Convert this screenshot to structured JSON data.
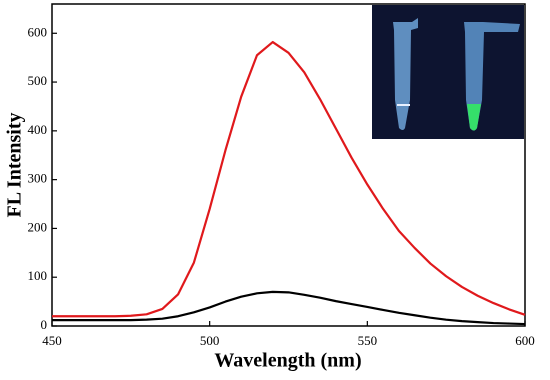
{
  "chart_data": {
    "type": "line",
    "x_label": "Wavelength (nm)",
    "y_label": "FL Intensity",
    "x": [
      450,
      455,
      460,
      465,
      470,
      475,
      480,
      485,
      490,
      495,
      500,
      505,
      510,
      515,
      520,
      525,
      530,
      535,
      540,
      545,
      550,
      555,
      560,
      565,
      570,
      575,
      580,
      585,
      590,
      595,
      600
    ],
    "series": [
      {
        "color": "#e0191c",
        "values": [
          20,
          20,
          20,
          20,
          20,
          21,
          24,
          35,
          65,
          130,
          240,
          360,
          470,
          555,
          582,
          560,
          520,
          465,
          405,
          345,
          290,
          240,
          195,
          160,
          128,
          102,
          80,
          62,
          47,
          34,
          23
        ]
      },
      {
        "color": "#000000",
        "values": [
          12,
          12,
          12,
          12,
          12,
          12,
          13,
          15,
          20,
          28,
          38,
          50,
          60,
          67,
          70,
          69,
          64,
          58,
          51,
          45,
          39,
          33,
          27,
          22,
          17,
          13,
          10,
          8,
          6,
          5,
          4
        ]
      }
    ],
    "xlim": [
      450,
      600
    ],
    "ylim": [
      0,
      660
    ],
    "xticks": [
      450,
      500,
      550,
      600
    ],
    "yticks": [
      0,
      100,
      200,
      300,
      400,
      500,
      600
    ]
  }
}
